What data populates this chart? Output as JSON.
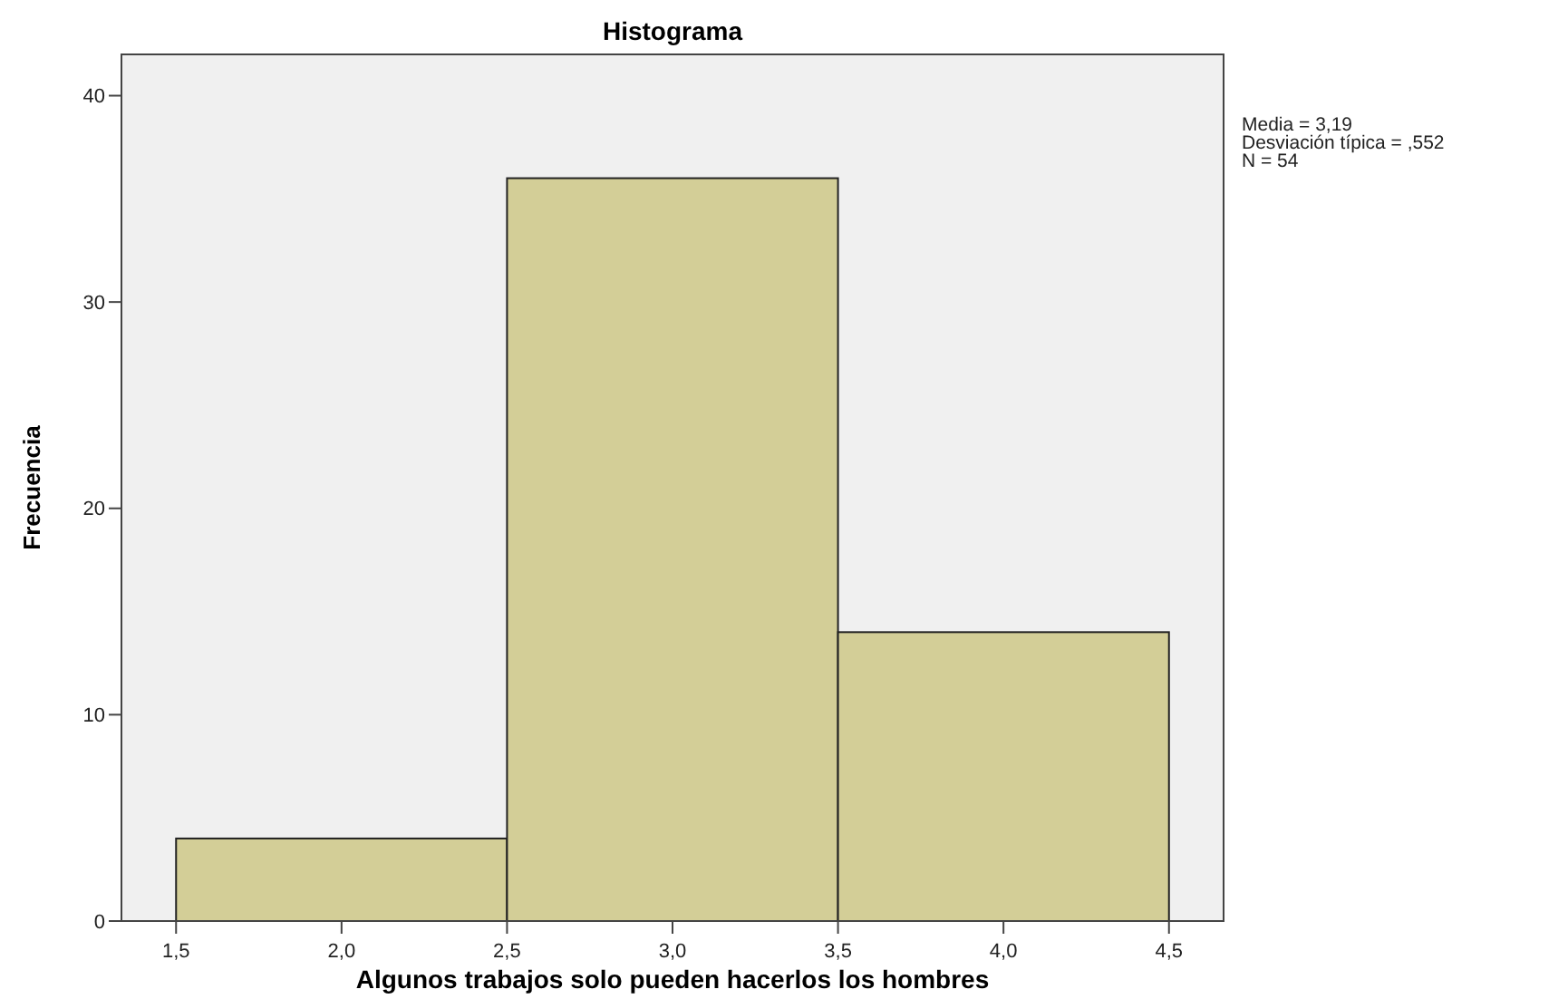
{
  "chart_data": {
    "type": "histogram",
    "title": "Histograma",
    "xlabel": "Algunos trabajos solo pueden hacerlos los hombres",
    "ylabel": "Frecuencia",
    "bins": [
      1.5,
      2.5,
      3.5,
      4.5
    ],
    "values": [
      4,
      36,
      14
    ],
    "color": "#d3ce97",
    "xlim": [
      1.335,
      4.665
    ],
    "ylim": [
      0,
      42
    ],
    "xticks": [
      {
        "value": 1.5,
        "label": "1,5"
      },
      {
        "value": 2,
        "label": "2,0"
      },
      {
        "value": 2.5,
        "label": "2,5"
      },
      {
        "value": 3,
        "label": "3,0"
      },
      {
        "value": 3.5,
        "label": "3,5"
      },
      {
        "value": 4,
        "label": "4,0"
      },
      {
        "value": 4.5,
        "label": "4,5"
      }
    ],
    "yticks": [
      0,
      10,
      20,
      30,
      40
    ],
    "annotations": [
      "Media = 3,19",
      "Desviación típica = ,552",
      "N = 54"
    ]
  }
}
